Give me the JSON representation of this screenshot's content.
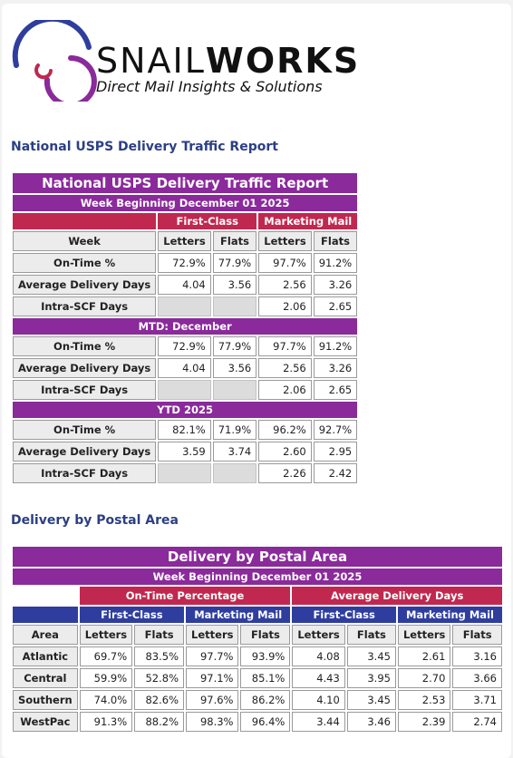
{
  "logo": {
    "word_thin": "SNAIL",
    "word_bold": "WORKS",
    "tagline": "Direct Mail Insights & Solutions"
  },
  "report": {
    "heading": "National USPS Delivery Traffic Report",
    "title": "National USPS Delivery Traffic Report",
    "week": "Week Beginning December 01 2025",
    "group_first": "First-Class",
    "group_marketing": "Marketing Mail",
    "col_week": "Week",
    "col_letters": "Letters",
    "col_flats": "Flats",
    "weekly": [
      {
        "label": "On-Time %",
        "v": [
          "72.9%",
          "77.9%",
          "97.7%",
          "91.2%"
        ]
      },
      {
        "label": "Average Delivery Days",
        "v": [
          "4.04",
          "3.56",
          "2.56",
          "3.26"
        ]
      },
      {
        "label": "Intra-SCF Days",
        "v": [
          "",
          "",
          "2.06",
          "2.65"
        ]
      }
    ],
    "mtd_label": "MTD: December",
    "mtd": [
      {
        "label": "On-Time %",
        "v": [
          "72.9%",
          "77.9%",
          "97.7%",
          "91.2%"
        ]
      },
      {
        "label": "Average Delivery Days",
        "v": [
          "4.04",
          "3.56",
          "2.56",
          "3.26"
        ]
      },
      {
        "label": "Intra-SCF Days",
        "v": [
          "",
          "",
          "2.06",
          "2.65"
        ]
      }
    ],
    "ytd_label": "YTD 2025",
    "ytd": [
      {
        "label": "On-Time %",
        "v": [
          "82.1%",
          "71.9%",
          "96.2%",
          "92.7%"
        ]
      },
      {
        "label": "Average Delivery Days",
        "v": [
          "3.59",
          "3.74",
          "2.60",
          "2.95"
        ]
      },
      {
        "label": "Intra-SCF Days",
        "v": [
          "",
          "",
          "2.26",
          "2.42"
        ]
      }
    ]
  },
  "area": {
    "heading": "Delivery by Postal Area",
    "title": "Delivery by Postal Area",
    "week": "Week Beginning December 01 2025",
    "group_ontime": "On-Time Percentage",
    "group_avg": "Average Delivery Days",
    "first_class": "First-Class",
    "marketing": "Marketing Mail",
    "col_area": "Area",
    "col_letters": "Letters",
    "col_flats": "Flats",
    "rows": [
      {
        "area": "Atlantic",
        "v": [
          "69.7%",
          "83.5%",
          "97.7%",
          "93.9%",
          "4.08",
          "3.45",
          "2.61",
          "3.16"
        ]
      },
      {
        "area": "Central",
        "v": [
          "59.9%",
          "52.8%",
          "97.1%",
          "85.1%",
          "4.43",
          "3.95",
          "2.70",
          "3.66"
        ]
      },
      {
        "area": "Southern",
        "v": [
          "74.0%",
          "82.6%",
          "97.6%",
          "86.2%",
          "4.10",
          "3.45",
          "2.53",
          "3.71"
        ]
      },
      {
        "area": "WestPac",
        "v": [
          "91.3%",
          "88.2%",
          "98.3%",
          "96.4%",
          "3.44",
          "3.46",
          "2.39",
          "2.74"
        ]
      }
    ]
  }
}
